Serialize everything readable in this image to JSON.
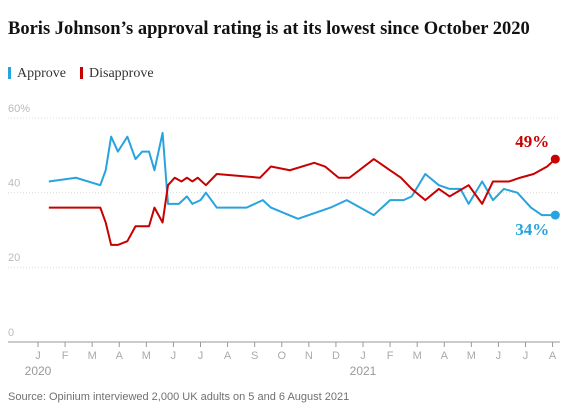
{
  "chart_data": {
    "type": "line",
    "title": "Boris Johnson’s approval rating is at its lowest since October 2020",
    "source": "Source: Opinium interviewed 2,000 UK adults on 5 and 6 August 2021",
    "year_labels": [
      {
        "value": 0,
        "label": "2020"
      },
      {
        "value": 12,
        "label": "2021"
      }
    ],
    "xlim": [
      0,
      19.2
    ],
    "xticks": [
      {
        "value": 0,
        "label": "J"
      },
      {
        "value": 1,
        "label": "F"
      },
      {
        "value": 2,
        "label": "M"
      },
      {
        "value": 3,
        "label": "A"
      },
      {
        "value": 4,
        "label": "M"
      },
      {
        "value": 5,
        "label": "J"
      },
      {
        "value": 6,
        "label": "J"
      },
      {
        "value": 7,
        "label": "A"
      },
      {
        "value": 8,
        "label": "S"
      },
      {
        "value": 9,
        "label": "O"
      },
      {
        "value": 10,
        "label": "N"
      },
      {
        "value": 11,
        "label": "D"
      },
      {
        "value": 12,
        "label": "J"
      },
      {
        "value": 13,
        "label": "F"
      },
      {
        "value": 14,
        "label": "M"
      },
      {
        "value": 15,
        "label": "A"
      },
      {
        "value": 16,
        "label": "M"
      },
      {
        "value": 17,
        "label": "J"
      },
      {
        "value": 18,
        "label": "J"
      },
      {
        "value": 19,
        "label": "A"
      }
    ],
    "ylim": [
      0,
      60
    ],
    "yticks": [
      {
        "value": 60,
        "label": "60%"
      },
      40,
      20,
      0
    ],
    "grid": true,
    "series": [
      {
        "name": "Approve",
        "color": "#27a4dd",
        "x": [
          0.4,
          1.4,
          2.3,
          2.5,
          2.7,
          2.95,
          3.3,
          3.6,
          3.85,
          4.1,
          4.3,
          4.6,
          4.8,
          5.2,
          5.5,
          5.7,
          6.0,
          6.2,
          6.6,
          7.7,
          8.3,
          8.6,
          9.6,
          10.8,
          11.4,
          12.4,
          13.0,
          13.5,
          13.8,
          14.3,
          14.8,
          15.2,
          15.6,
          15.9,
          16.4,
          16.8,
          17.2,
          17.7,
          18.2,
          18.6,
          19.1
        ],
        "values": [
          43,
          44,
          42,
          46,
          55,
          51,
          55,
          49,
          51,
          51,
          46,
          56,
          37,
          37,
          39,
          37,
          38,
          40,
          36,
          36,
          38,
          36,
          33,
          36,
          38,
          34,
          38,
          38,
          39,
          45,
          42,
          41,
          41,
          37,
          43,
          38,
          41,
          40,
          36,
          34,
          34
        ],
        "value_labels": [
          null,
          null,
          null,
          null,
          null,
          null,
          null,
          null,
          null,
          null,
          null,
          null,
          null,
          null,
          null,
          null,
          null,
          null,
          null,
          null,
          null,
          null,
          null,
          null,
          null,
          null,
          null,
          null,
          null,
          null,
          null,
          null,
          null,
          null,
          null,
          null,
          null,
          null,
          null,
          null,
          "34%"
        ]
      },
      {
        "name": "Disapprove",
        "color": "#c70000",
        "x": [
          0.4,
          2.3,
          2.5,
          2.7,
          2.95,
          3.3,
          3.6,
          4.1,
          4.3,
          4.6,
          4.8,
          5.05,
          5.3,
          5.5,
          5.7,
          5.9,
          6.2,
          6.6,
          8.2,
          8.6,
          9.3,
          10.2,
          10.6,
          11.1,
          11.5,
          12.4,
          13.0,
          13.4,
          13.8,
          14.3,
          14.8,
          15.2,
          15.9,
          16.4,
          16.8,
          17.4,
          17.8,
          18.3,
          18.8,
          19.1
        ],
        "values": [
          36,
          36,
          32,
          26,
          26,
          27,
          31,
          31,
          36,
          32,
          42,
          44,
          43,
          44,
          43,
          44,
          42,
          45,
          44,
          47,
          46,
          48,
          47,
          44,
          44,
          49,
          46,
          44,
          41,
          38,
          41,
          39,
          42,
          37,
          43,
          43,
          44,
          45,
          47,
          49
        ],
        "value_labels": [
          null,
          null,
          null,
          null,
          null,
          null,
          null,
          null,
          null,
          null,
          null,
          null,
          null,
          null,
          null,
          null,
          null,
          null,
          null,
          null,
          null,
          null,
          null,
          null,
          null,
          null,
          null,
          null,
          null,
          null,
          null,
          null,
          null,
          null,
          null,
          null,
          null,
          null,
          null,
          "49%"
        ]
      }
    ]
  }
}
